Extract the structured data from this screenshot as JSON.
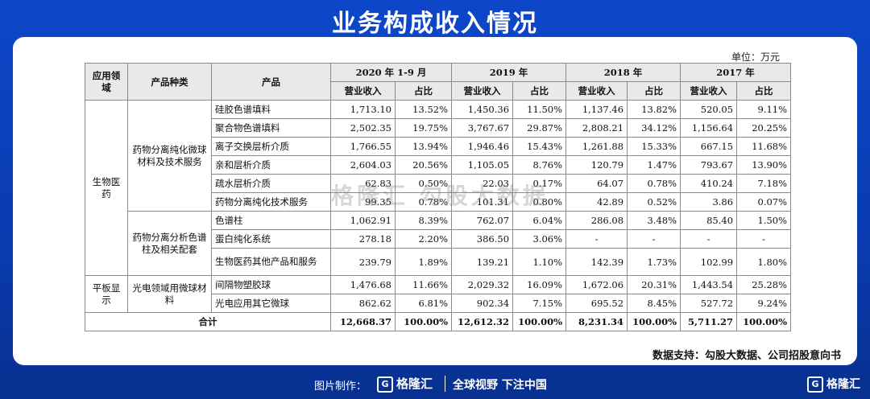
{
  "title": "业务构成收入情况",
  "unit": "单位：万元",
  "headers": {
    "domain": "应用领域",
    "category": "产品种类",
    "product": "产品",
    "periods": [
      "2020 年 1-9 月",
      "2019 年",
      "2018 年",
      "2017 年"
    ],
    "revenue": "营业收入",
    "share": "占比"
  },
  "groups": {
    "bio": "生物医药",
    "optic": "平板显示",
    "cat1": "药物分离纯化微球材料及技术服务",
    "cat2": "药物分离分析色谱柱及相关配套",
    "cat3": "光电领域用微球材料"
  },
  "rows": [
    {
      "product": "硅胶色谱填料",
      "v": [
        "1,713.10",
        "13.52%",
        "1,450.36",
        "11.50%",
        "1,137.46",
        "13.82%",
        "520.05",
        "9.11%"
      ]
    },
    {
      "product": "聚合物色谱填料",
      "v": [
        "2,502.35",
        "19.75%",
        "3,767.67",
        "29.87%",
        "2,808.21",
        "34.12%",
        "1,156.64",
        "20.25%"
      ]
    },
    {
      "product": "离子交换层析介质",
      "v": [
        "1,766.55",
        "13.94%",
        "1,946.46",
        "15.43%",
        "1,261.88",
        "15.33%",
        "667.15",
        "11.68%"
      ]
    },
    {
      "product": "亲和层析介质",
      "v": [
        "2,604.03",
        "20.56%",
        "1,105.05",
        "8.76%",
        "120.79",
        "1.47%",
        "793.67",
        "13.90%"
      ]
    },
    {
      "product": "疏水层析介质",
      "v": [
        "62.83",
        "0.50%",
        "22.03",
        "0.17%",
        "64.07",
        "0.78%",
        "410.24",
        "7.18%"
      ]
    },
    {
      "product": "药物分离纯化技术服务",
      "v": [
        "99.35",
        "0.78%",
        "101.31",
        "0.80%",
        "42.89",
        "0.52%",
        "3.86",
        "0.07%"
      ]
    },
    {
      "product": "色谱柱",
      "v": [
        "1,062.91",
        "8.39%",
        "762.07",
        "6.04%",
        "286.08",
        "3.48%",
        "85.40",
        "1.50%"
      ]
    },
    {
      "product": "蛋白纯化系统",
      "v": [
        "278.18",
        "2.20%",
        "386.50",
        "3.06%",
        "-",
        "-",
        "-",
        "-"
      ]
    },
    {
      "product": "生物医药其他产品和服务",
      "v": [
        "239.79",
        "1.89%",
        "139.21",
        "1.10%",
        "142.39",
        "1.73%",
        "102.99",
        "1.80%"
      ]
    },
    {
      "product": "间隔物塑胶球",
      "v": [
        "1,476.68",
        "11.66%",
        "2,029.32",
        "16.09%",
        "1,672.06",
        "20.31%",
        "1,443.54",
        "25.28%"
      ]
    },
    {
      "product": "光电应用其它微球",
      "v": [
        "862.62",
        "6.81%",
        "902.34",
        "7.15%",
        "695.52",
        "8.45%",
        "527.72",
        "9.24%"
      ]
    }
  ],
  "total": {
    "label": "合计",
    "v": [
      "12,668.37",
      "100.00%",
      "12,612.32",
      "100.00%",
      "8,231.34",
      "100.00%",
      "5,711.27",
      "100.00%"
    ]
  },
  "source": "数据支持：勾股大数据、公司招股意向书",
  "watermark": "格隆汇  勾股大数据",
  "footer": {
    "made_by": "图片制作：",
    "logo": "格隆汇",
    "slogan": "全球视野 下注中国",
    "corner_logo": "格隆汇"
  }
}
